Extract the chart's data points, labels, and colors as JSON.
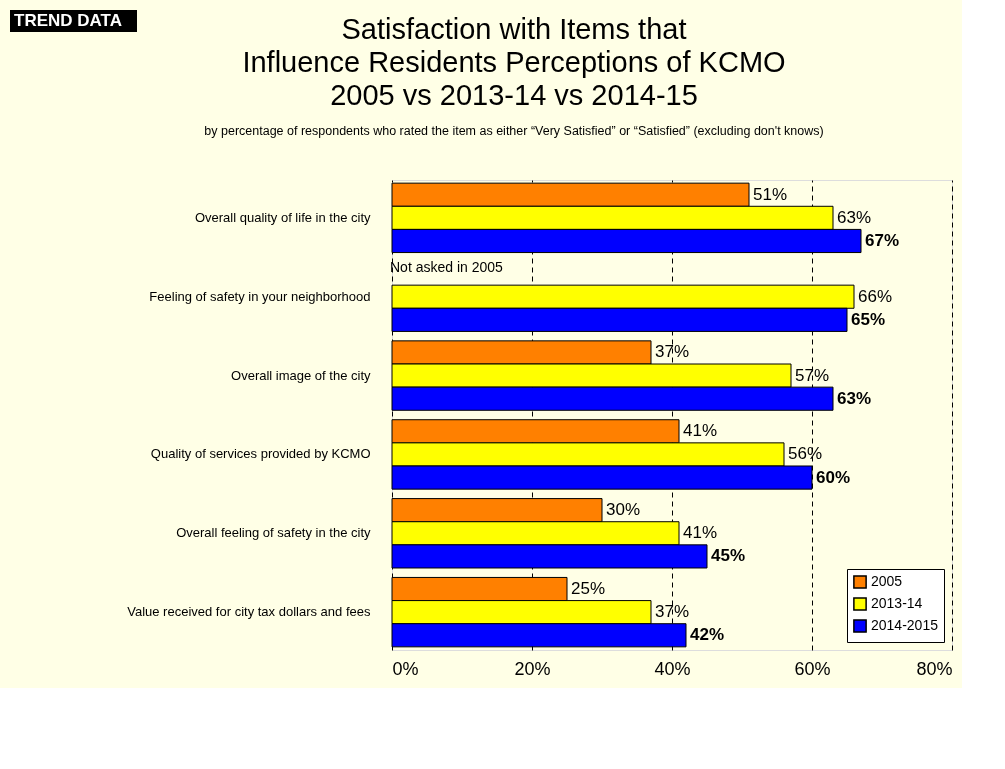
{
  "chart_data": {
    "type": "bar",
    "orientation": "horizontal",
    "title": [
      "Satisfaction with Items that",
      "Influence Residents Perceptions of KCMO",
      "2005 vs 2013-14 vs 2014-15"
    ],
    "subtitle": "by percentage of respondents who rated the item as either “Very Satisfied” or “Satisfied” (excluding don't knows)",
    "categories": [
      "Overall quality of life in the city",
      "Feeling of safety in your neighborhood",
      "Overall image of the city",
      "Quality of services provided by KCMO",
      "Overall feeling of safety in the city",
      "Value received for city tax dollars and fees"
    ],
    "series": [
      {
        "name": "2005",
        "color": "#ff8000",
        "values": [
          51,
          null,
          37,
          41,
          30,
          25
        ],
        "value_labels": [
          "51%",
          null,
          "37%",
          "41%",
          "30%",
          "25%"
        ]
      },
      {
        "name": "2013-14",
        "color": "#ffff00",
        "values": [
          63,
          66,
          57,
          56,
          41,
          37
        ],
        "value_labels": [
          "63%",
          "66%",
          "57%",
          "56%",
          "41%",
          "37%"
        ]
      },
      {
        "name": "2014-2015",
        "color": "#0000ff",
        "values": [
          67,
          65,
          63,
          60,
          45,
          42
        ],
        "value_labels": [
          "67%",
          "65%",
          "63%",
          "60%",
          "45%",
          "42%"
        ]
      }
    ],
    "xlim": [
      0,
      80
    ],
    "xticks": [
      {
        "value": 0,
        "label": "0%"
      },
      {
        "value": 20,
        "label": "20%"
      },
      {
        "value": 40,
        "label": "40%"
      },
      {
        "value": 60,
        "label": "60%"
      },
      {
        "value": 80,
        "label": "80%"
      }
    ],
    "grid": "x",
    "legend": "bottom right",
    "annotations": [
      "TREND DATA",
      {
        "text": "Not asked in 2005",
        "x": 0,
        "y": "Feeling of safety in your neighborhood"
      }
    ]
  }
}
